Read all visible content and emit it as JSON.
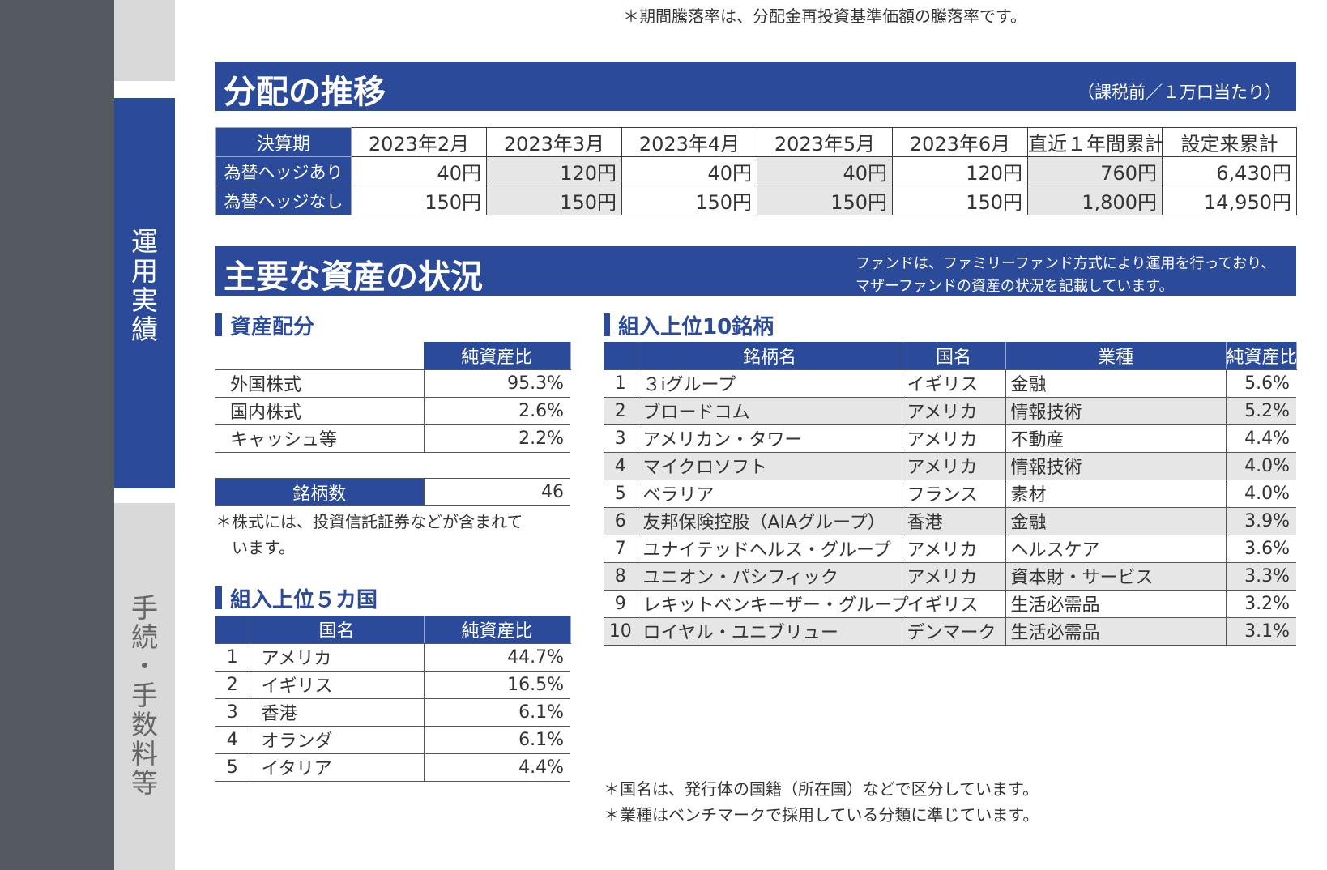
{
  "sidebar": {
    "active_tab": "運用実績",
    "inactive_tab": "手続・手数料等"
  },
  "top_note": "＊期間騰落率は、分配金再投資基準価額の騰落率です。",
  "distribution": {
    "title": "分配の推移",
    "subtitle": "（課税前／１万口当たり）",
    "header": [
      "決算期",
      "2023年2月",
      "2023年3月",
      "2023年4月",
      "2023年5月",
      "2023年6月",
      "直近１年間累計",
      "設定来累計"
    ],
    "rows": [
      {
        "label": "為替ヘッジあり",
        "values": [
          "40円",
          "120円",
          "40円",
          "40円",
          "120円",
          "760円",
          "6,430円"
        ]
      },
      {
        "label": "為替ヘッジなし",
        "values": [
          "150円",
          "150円",
          "150円",
          "150円",
          "150円",
          "1,800円",
          "14,950円"
        ]
      }
    ]
  },
  "assets": {
    "title": "主要な資産の状況",
    "note_line1": "ファンドは、ファミリーファンド方式により運用を行っており、",
    "note_line2": "マザーファンドの資産の状況を記載しています。"
  },
  "allocation": {
    "heading": "資産配分",
    "col_header": "純資産比",
    "rows": [
      {
        "name": "外国株式",
        "value": "95.3%"
      },
      {
        "name": "国内株式",
        "value": "2.6%"
      },
      {
        "name": "キャッシュ等",
        "value": "2.2%"
      }
    ],
    "count_label": "銘柄数",
    "count_value": "46",
    "footnote_line1": "＊株式には、投資信託証券などが含まれて",
    "footnote_line2": "います。"
  },
  "countries": {
    "heading": "組入上位５カ国",
    "col_country": "国名",
    "col_ratio": "純資産比",
    "rows": [
      {
        "rank": "1",
        "name": "アメリカ",
        "value": "44.7%"
      },
      {
        "rank": "2",
        "name": "イギリス",
        "value": "16.5%"
      },
      {
        "rank": "3",
        "name": "香港",
        "value": "6.1%"
      },
      {
        "rank": "4",
        "name": "オランダ",
        "value": "6.1%"
      },
      {
        "rank": "5",
        "name": "イタリア",
        "value": "4.4%"
      }
    ]
  },
  "top10": {
    "heading": "組入上位10銘柄",
    "col_name": "銘柄名",
    "col_country": "国名",
    "col_sector": "業種",
    "col_ratio": "純資産比",
    "rows": [
      {
        "rank": "1",
        "name": "３iグループ",
        "country": "イギリス",
        "sector": "金融",
        "value": "5.6%"
      },
      {
        "rank": "2",
        "name": "ブロードコム",
        "country": "アメリカ",
        "sector": "情報技術",
        "value": "5.2%"
      },
      {
        "rank": "3",
        "name": "アメリカン・タワー",
        "country": "アメリカ",
        "sector": "不動産",
        "value": "4.4%"
      },
      {
        "rank": "4",
        "name": "マイクロソフト",
        "country": "アメリカ",
        "sector": "情報技術",
        "value": "4.0%"
      },
      {
        "rank": "5",
        "name": "ベラリア",
        "country": "フランス",
        "sector": "素材",
        "value": "4.0%"
      },
      {
        "rank": "6",
        "name": "友邦保険控股（AIAグループ）",
        "country": "香港",
        "sector": "金融",
        "value": "3.9%"
      },
      {
        "rank": "7",
        "name": "ユナイテッドヘルス・グループ",
        "country": "アメリカ",
        "sector": "ヘルスケア",
        "value": "3.6%"
      },
      {
        "rank": "8",
        "name": "ユニオン・パシフィック",
        "country": "アメリカ",
        "sector": "資本財・サービス",
        "value": "3.3%"
      },
      {
        "rank": "9",
        "name": "レキットベンキーザー・グループ",
        "country": "イギリス",
        "sector": "生活必需品",
        "value": "3.2%"
      },
      {
        "rank": "10",
        "name": "ロイヤル・ユニブリュー",
        "country": "デンマーク",
        "sector": "生活必需品",
        "value": "3.1%"
      }
    ],
    "footnote_line1": "＊国名は、発行体の国籍（所在国）などで区分しています。",
    "footnote_line2": "＊業種はベンチマークで採用している分類に準じています。"
  }
}
